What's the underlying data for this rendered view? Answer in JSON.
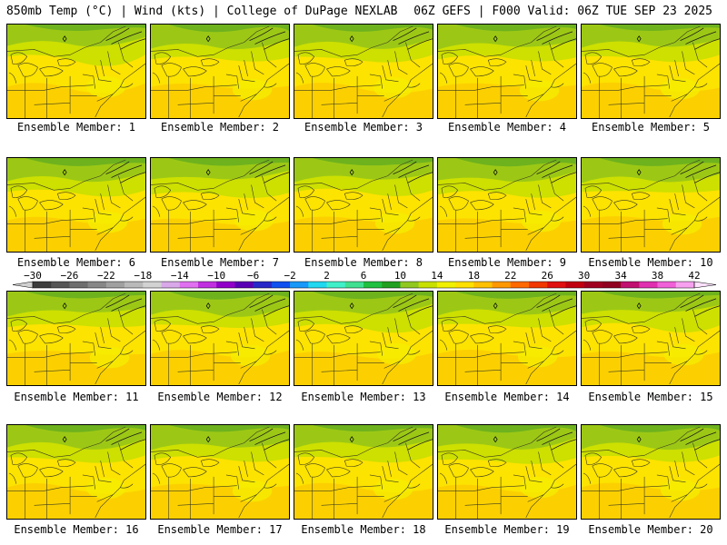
{
  "header": {
    "left_title": "850mb Temp (°C) | Wind (kts) | College of DuPage NEXLAB",
    "right_title": "06Z GEFS | F000 Valid: 06Z TUE SEP 23 2025"
  },
  "members": [
    {
      "label": "Ensemble Member: 1"
    },
    {
      "label": "Ensemble Member: 2"
    },
    {
      "label": "Ensemble Member: 3"
    },
    {
      "label": "Ensemble Member: 4"
    },
    {
      "label": "Ensemble Member: 5"
    },
    {
      "label": "Ensemble Member: 6"
    },
    {
      "label": "Ensemble Member: 7"
    },
    {
      "label": "Ensemble Member: 8"
    },
    {
      "label": "Ensemble Member: 9"
    },
    {
      "label": "Ensemble Member: 10"
    },
    {
      "label": "Ensemble Member: 11"
    },
    {
      "label": "Ensemble Member: 12"
    },
    {
      "label": "Ensemble Member: 13"
    },
    {
      "label": "Ensemble Member: 14"
    },
    {
      "label": "Ensemble Member: 15"
    },
    {
      "label": "Ensemble Member: 16"
    },
    {
      "label": "Ensemble Member: 17"
    },
    {
      "label": "Ensemble Member: 18"
    },
    {
      "label": "Ensemble Member: 19"
    },
    {
      "label": "Ensemble Member: 20"
    }
  ],
  "colorbar": {
    "ticks": [
      "−30",
      "−26",
      "−22",
      "−18",
      "−14",
      "−10",
      "−6",
      "−2",
      "2",
      "6",
      "10",
      "14",
      "18",
      "22",
      "26",
      "30",
      "34",
      "38",
      "42"
    ],
    "colors": [
      "#3c3c3c",
      "#555555",
      "#6e6e6e",
      "#878787",
      "#a0a0a0",
      "#b9b9b9",
      "#d2d2d2",
      "#d8a8e8",
      "#e070f0",
      "#c030e0",
      "#9000c8",
      "#5a00b4",
      "#2828c8",
      "#1050f0",
      "#1898f8",
      "#20d8f0",
      "#40f0c8",
      "#40e090",
      "#20c040",
      "#20a020",
      "#90c820",
      "#c8e000",
      "#f0f000",
      "#ffe000",
      "#ffc000",
      "#ff9800",
      "#ff6800",
      "#f03800",
      "#e01010",
      "#c00010",
      "#a00020",
      "#900020",
      "#c01070",
      "#e030b0",
      "#f060d8",
      "#f8a0f0"
    ],
    "low_arrow": "#d0d0d0",
    "high_arrow": "#fce0fc"
  },
  "map_colors": {
    "cold": "#6eb21e",
    "cool": "#9cc815",
    "mild": "#cde000",
    "warm": "#f5ec00",
    "warmer": "#fde300",
    "hot": "#fcd000",
    "lines": "#3a3a20"
  }
}
